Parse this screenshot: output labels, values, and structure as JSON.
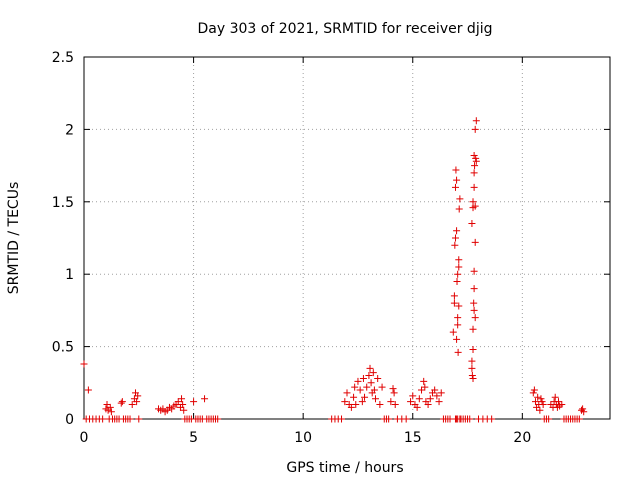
{
  "chart_data": {
    "type": "scatter",
    "title": "Day 303 of 2021, SRMTID for receiver djig",
    "xlabel": "GPS time / hours",
    "ylabel": "SRMTID / TECUs",
    "xlim": [
      0,
      24
    ],
    "ylim": [
      0,
      2.5
    ],
    "xticks": [
      0,
      5,
      10,
      15,
      20
    ],
    "xtick_labels": [
      "0",
      "5",
      "10",
      "15",
      "20"
    ],
    "yticks": [
      0,
      0.5,
      1,
      1.5,
      2,
      2.5
    ],
    "ytick_labels": [
      "0",
      "0.5",
      "1",
      "1.5",
      "2",
      "2.5"
    ],
    "grid": true,
    "marker": "+",
    "series": [
      {
        "name": "SRMTID",
        "color": "#e00000",
        "x": [
          0.0,
          0.2,
          0.1,
          0.25,
          0.4,
          0.55,
          0.7,
          0.85,
          1.0,
          1.05,
          1.1,
          1.15,
          1.2,
          1.25,
          1.3,
          1.4,
          1.5,
          1.6,
          1.7,
          1.75,
          1.8,
          1.9,
          2.0,
          2.1,
          2.2,
          2.3,
          2.35,
          2.4,
          2.45,
          2.5,
          3.4,
          3.5,
          3.6,
          3.7,
          3.8,
          3.9,
          4.0,
          4.1,
          4.2,
          4.3,
          4.4,
          4.45,
          4.5,
          4.55,
          4.6,
          4.7,
          4.8,
          4.9,
          5.0,
          5.1,
          5.2,
          5.3,
          5.4,
          5.5,
          5.6,
          5.7,
          5.8,
          5.9,
          6.0,
          6.1,
          11.3,
          11.45,
          11.6,
          11.75,
          11.9,
          12.0,
          12.1,
          12.2,
          12.3,
          12.35,
          12.4,
          12.5,
          12.6,
          12.7,
          12.75,
          12.8,
          12.9,
          13.0,
          13.05,
          13.1,
          13.15,
          13.2,
          13.25,
          13.3,
          13.4,
          13.5,
          13.6,
          13.7,
          13.8,
          13.9,
          14.0,
          14.1,
          14.15,
          14.2,
          14.3,
          14.5,
          14.7,
          14.9,
          15.0,
          15.1,
          15.2,
          15.3,
          15.4,
          15.5,
          15.55,
          15.6,
          15.7,
          15.8,
          15.9,
          16.0,
          16.1,
          16.2,
          16.3,
          16.4,
          16.5,
          16.6,
          16.7,
          16.85,
          16.9,
          16.92,
          16.95,
          16.97,
          17.0,
          17.02,
          17.05,
          17.07,
          17.1,
          17.12,
          17.15,
          17.0,
          17.05,
          17.1,
          16.9,
          16.95,
          17.0,
          17.05,
          17.1,
          17.0,
          16.95,
          17.05,
          17.15,
          17.2,
          17.3,
          17.4,
          17.5,
          17.6,
          17.7,
          17.72,
          17.75,
          17.78,
          17.8,
          17.82,
          17.85,
          17.87,
          17.9,
          17.8,
          17.75,
          17.85,
          17.8,
          17.7,
          17.75,
          17.8,
          17.85,
          17.9,
          17.8,
          17.75,
          17.85,
          17.7,
          17.75,
          17.8,
          18.0,
          18.2,
          18.4,
          18.6,
          20.5,
          20.55,
          20.6,
          20.65,
          20.7,
          20.75,
          20.8,
          20.85,
          20.9,
          20.95,
          21.0,
          21.1,
          21.2,
          21.3,
          21.4,
          21.45,
          21.5,
          21.55,
          21.6,
          21.65,
          21.7,
          21.8,
          21.9,
          22.0,
          22.1,
          22.2,
          22.3,
          22.4,
          22.5,
          22.6,
          22.7,
          22.75,
          22.8
        ],
        "y": [
          0.38,
          0.2,
          0.0,
          0.0,
          0.0,
          0.0,
          0.0,
          0.0,
          0.07,
          0.1,
          0.06,
          0.0,
          0.08,
          0.05,
          0.0,
          0.0,
          0.0,
          0.0,
          0.11,
          0.12,
          0.0,
          0.0,
          0.0,
          0.0,
          0.1,
          0.14,
          0.18,
          0.12,
          0.16,
          0.0,
          0.07,
          0.06,
          0.07,
          0.05,
          0.06,
          0.08,
          0.07,
          0.09,
          0.1,
          0.12,
          0.08,
          0.14,
          0.1,
          0.06,
          0.0,
          0.0,
          0.0,
          0.0,
          0.12,
          0.0,
          0.0,
          0.0,
          0.0,
          0.14,
          0.0,
          0.0,
          0.0,
          0.0,
          0.0,
          0.0,
          0.0,
          0.0,
          0.0,
          0.0,
          0.12,
          0.18,
          0.1,
          0.08,
          0.15,
          0.22,
          0.1,
          0.26,
          0.2,
          0.12,
          0.28,
          0.15,
          0.22,
          0.3,
          0.35,
          0.25,
          0.18,
          0.32,
          0.2,
          0.14,
          0.28,
          0.1,
          0.22,
          0.0,
          0.0,
          0.0,
          0.12,
          0.21,
          0.18,
          0.1,
          0.0,
          0.0,
          0.0,
          0.12,
          0.16,
          0.1,
          0.08,
          0.14,
          0.2,
          0.26,
          0.22,
          0.12,
          0.1,
          0.14,
          0.18,
          0.2,
          0.16,
          0.12,
          0.18,
          0.0,
          0.0,
          0.0,
          0.0,
          0.6,
          0.8,
          1.2,
          1.6,
          1.72,
          1.3,
          0.95,
          0.7,
          0.46,
          1.05,
          1.45,
          1.52,
          0.55,
          0.65,
          1.1,
          0.85,
          1.25,
          1.65,
          1.0,
          0.78,
          0.0,
          0.0,
          0.0,
          0.0,
          0.0,
          0.0,
          0.0,
          0.0,
          0.0,
          1.35,
          0.3,
          0.48,
          0.8,
          1.6,
          1.75,
          2.0,
          1.8,
          2.06,
          1.02,
          1.46,
          1.22,
          1.7,
          0.35,
          0.62,
          0.75,
          0.7,
          1.78,
          1.82,
          1.5,
          1.47,
          0.4,
          0.28,
          0.9,
          0.0,
          0.0,
          0.0,
          0.0,
          0.18,
          0.2,
          0.12,
          0.08,
          0.15,
          0.1,
          0.06,
          0.14,
          0.12,
          0.1,
          0.0,
          0.0,
          0.0,
          0.1,
          0.08,
          0.12,
          0.15,
          0.1,
          0.08,
          0.12,
          0.09,
          0.1,
          0.0,
          0.0,
          0.0,
          0.0,
          0.0,
          0.0,
          0.0,
          0.0,
          0.06,
          0.07,
          0.05
        ]
      }
    ]
  }
}
